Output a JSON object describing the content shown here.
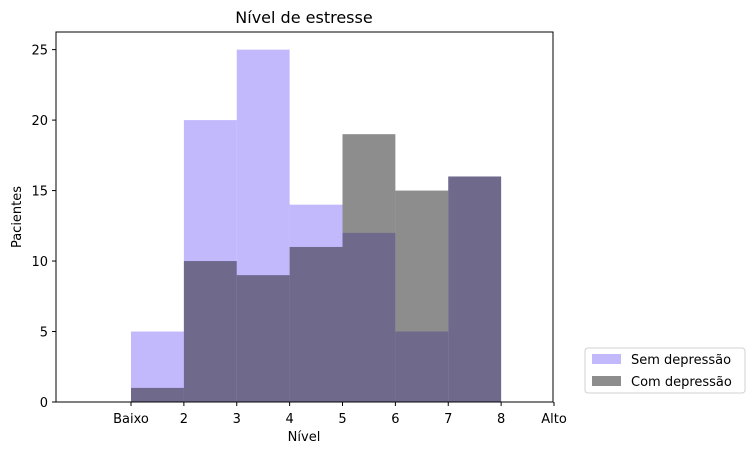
{
  "chart_data": {
    "type": "bar",
    "title": "Nível de estresse",
    "xlabel": "Nível",
    "ylabel": "Pacientes",
    "x_ticks": [
      "Baixo",
      "2",
      "3",
      "4",
      "5",
      "6",
      "7",
      "8",
      "Alto"
    ],
    "bins": [
      "Baixo-2",
      "2-3",
      "3-4",
      "4-5",
      "5-6",
      "6-7",
      "7-8"
    ],
    "ylim": [
      0,
      26.25
    ],
    "y_ticks": [
      0,
      5,
      10,
      15,
      20,
      25
    ],
    "grid": false,
    "legend_placement": "outside-bottom-right",
    "series": [
      {
        "name": "Sem depressão",
        "color": "#8f7ffc",
        "opacity": 0.55,
        "values": [
          5,
          20,
          25,
          14,
          12,
          5,
          16
        ]
      },
      {
        "name": "Com depressão",
        "color": "#1c1c1c",
        "opacity": 0.5,
        "values": [
          1,
          10,
          9,
          11,
          19,
          15,
          16
        ]
      }
    ]
  }
}
